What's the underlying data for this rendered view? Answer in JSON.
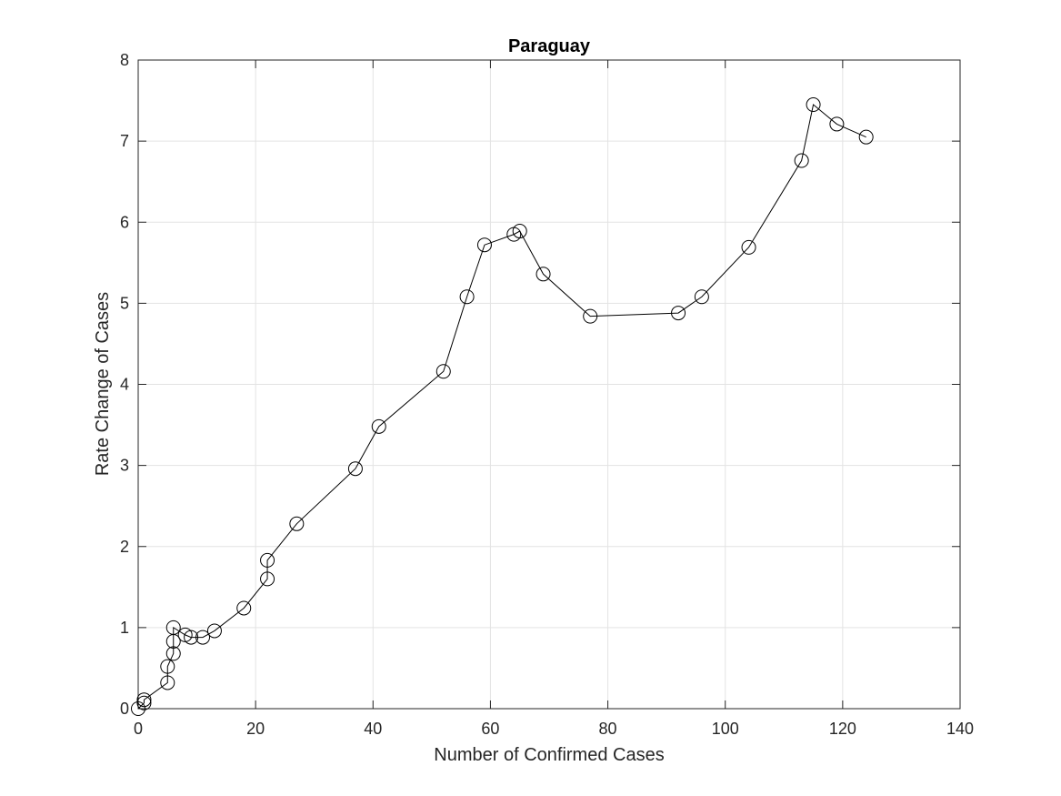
{
  "chart_data": {
    "type": "line",
    "title": "Paraguay",
    "xlabel": "Number of Confirmed Cases",
    "ylabel": "Rate Change of Cases",
    "xlim": [
      0,
      140
    ],
    "ylim": [
      0,
      8
    ],
    "xticks": [
      "0",
      "20",
      "40",
      "60",
      "80",
      "100",
      "120",
      "140"
    ],
    "yticks": [
      "0",
      "1",
      "2",
      "3",
      "4",
      "5",
      "6",
      "7",
      "8"
    ],
    "grid": true,
    "marker": "circle-open",
    "line_color": "#000000",
    "series": [
      {
        "x": [
          0,
          1,
          1,
          5,
          5,
          6,
          6,
          6,
          8,
          9,
          11,
          13,
          18,
          22,
          22,
          27,
          37,
          41,
          52,
          56,
          59,
          64,
          65,
          69,
          77,
          92,
          96,
          104,
          113,
          115,
          119,
          124
        ],
        "y": [
          0.0,
          0.07,
          0.11,
          0.32,
          0.52,
          0.68,
          0.83,
          1.0,
          0.91,
          0.88,
          0.88,
          0.96,
          1.24,
          1.6,
          1.83,
          2.28,
          2.96,
          3.48,
          4.16,
          5.08,
          5.72,
          5.85,
          5.89,
          5.36,
          4.84,
          4.88,
          5.08,
          5.69,
          6.76,
          7.45,
          7.21,
          7.05
        ]
      }
    ]
  }
}
